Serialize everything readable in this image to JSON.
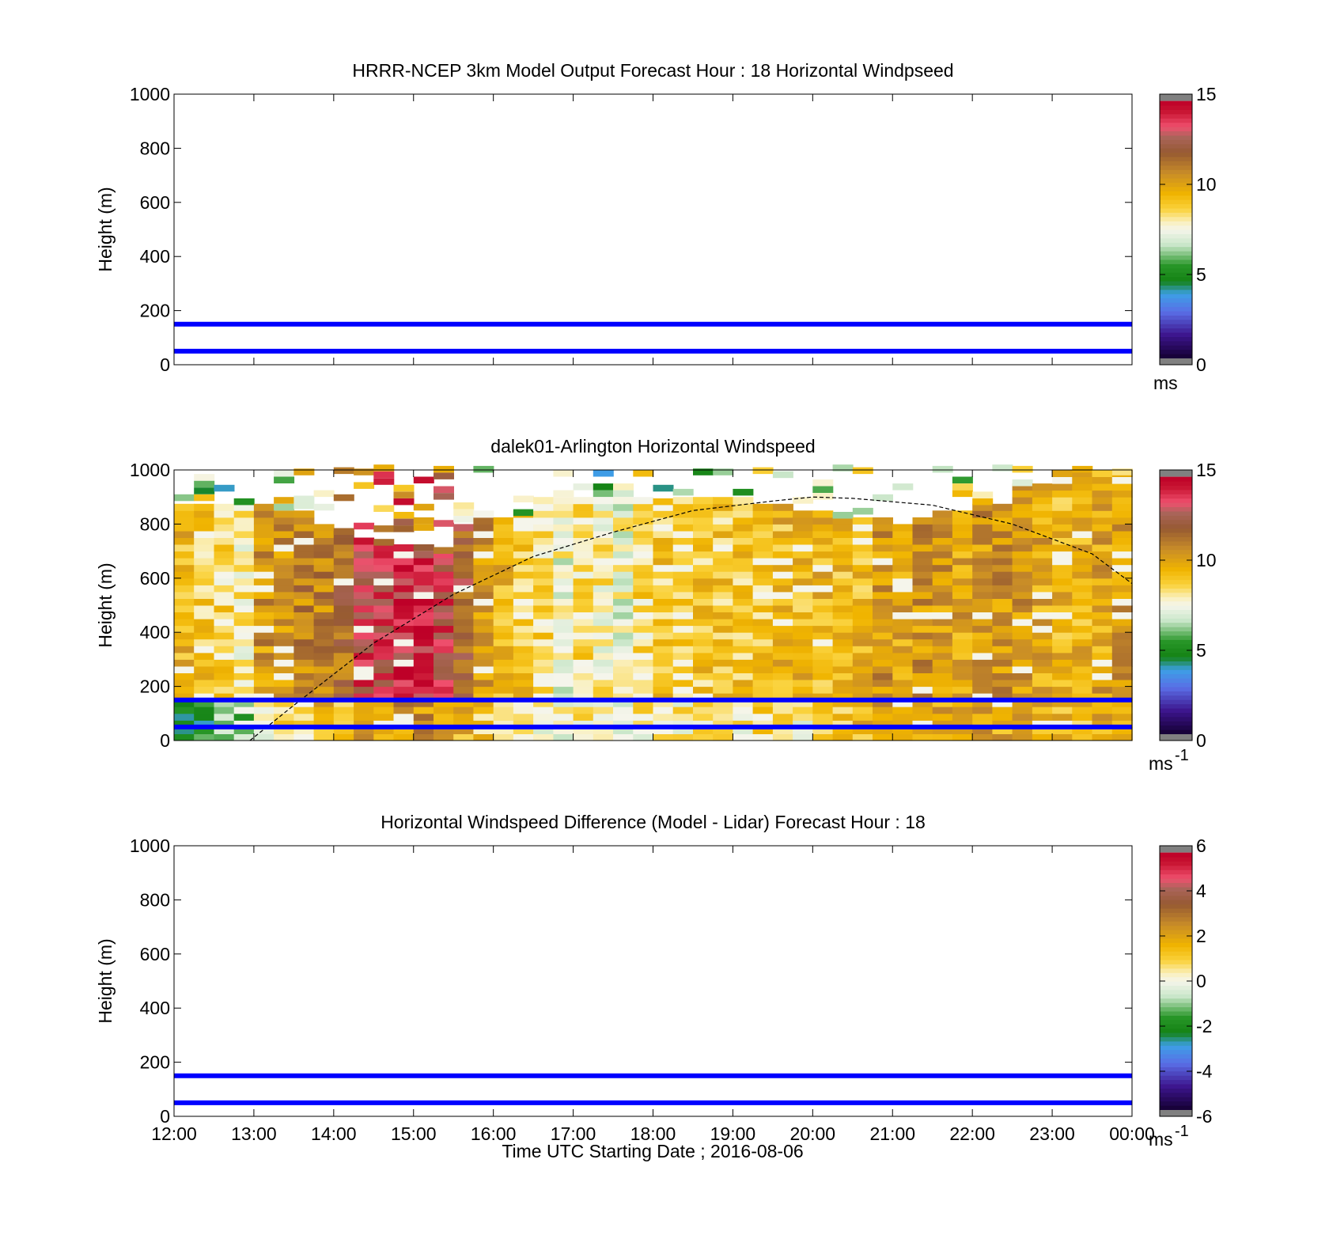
{
  "figure": {
    "background": "#ffffff",
    "x_ticks": [
      "12:00",
      "13:00",
      "14:00",
      "15:00",
      "16:00",
      "17:00",
      "18:00",
      "19:00",
      "20:00",
      "21:00",
      "22:00",
      "23:00",
      "00:00"
    ],
    "x_label": "Time UTC  Starting Date ; 2016-08-06"
  },
  "chart_data": [
    {
      "type": "heatmap",
      "title": "HRRR-NCEP 3km Model Output   Forecast Hour : 18 Horizontal Windpseed",
      "ylabel": "Height (m)",
      "ylim": [
        0,
        1000
      ],
      "y_ticks": [
        "0",
        "200",
        "400",
        "600",
        "800",
        "1000"
      ],
      "xlim_hours": [
        12,
        24
      ],
      "reference_lines": [
        {
          "height_m": 150,
          "color": "#0000ff"
        },
        {
          "height_m": 50,
          "color": "#0000ff"
        }
      ],
      "colorbar": {
        "range": [
          0,
          15
        ],
        "ticks": [
          "0",
          "5",
          "10",
          "15"
        ],
        "unit": "ms",
        "unit_superscript": ""
      },
      "data": "none"
    },
    {
      "type": "heatmap",
      "title": "dalek01-Arlington  Horizontal Windspeed",
      "ylabel": "Height (m)",
      "ylim": [
        0,
        1000
      ],
      "y_ticks": [
        "0",
        "200",
        "400",
        "600",
        "800",
        "1000"
      ],
      "xlim_hours": [
        12,
        24
      ],
      "reference_lines": [
        {
          "height_m": 150,
          "color": "#0000ff"
        },
        {
          "height_m": 50,
          "color": "#0000ff"
        }
      ],
      "boundary_layer_curve": {
        "style": "dashed",
        "color": "#000000",
        "points_hour_height": [
          [
            12.95,
            0
          ],
          [
            13.5,
            130
          ],
          [
            14.5,
            360
          ],
          [
            15.5,
            540
          ],
          [
            16.5,
            680
          ],
          [
            17.5,
            770
          ],
          [
            18.5,
            850
          ],
          [
            19.5,
            885
          ],
          [
            20.0,
            900
          ],
          [
            20.5,
            895
          ],
          [
            21.5,
            870
          ],
          [
            22.5,
            800
          ],
          [
            23.5,
            690
          ],
          [
            24.0,
            580
          ]
        ]
      },
      "colorbar": {
        "range": [
          0,
          15
        ],
        "ticks": [
          "0",
          "5",
          "10",
          "15"
        ],
        "unit": "ms",
        "unit_superscript": "-1"
      },
      "columns": [
        {
          "hour": 12.0,
          "top": 860,
          "speed": 9.5,
          "low_speed": 5.0
        },
        {
          "hour": 12.25,
          "top": 860,
          "speed": 9.0,
          "low_speed": 5.0
        },
        {
          "hour": 12.5,
          "top": 870,
          "speed": 8.5,
          "low_speed": 6.0
        },
        {
          "hour": 12.75,
          "top": 870,
          "speed": 8.0,
          "low_speed": 6.0
        },
        {
          "hour": 13.0,
          "top": 870,
          "speed": 10.5,
          "low_speed": 8.0
        },
        {
          "hour": 13.25,
          "top": 850,
          "speed": 10.5,
          "low_speed": 8.5
        },
        {
          "hour": 13.5,
          "top": 830,
          "speed": 11.0,
          "low_speed": 9.0
        },
        {
          "hour": 13.75,
          "top": 800,
          "speed": 11.0,
          "low_speed": 9.5
        },
        {
          "hour": 14.0,
          "top": 760,
          "speed": 11.5,
          "low_speed": 9.5
        },
        {
          "hour": 14.25,
          "top": 730,
          "speed": 13.5,
          "low_speed": 10.0
        },
        {
          "hour": 14.5,
          "top": 720,
          "speed": 13.5,
          "low_speed": 10.0
        },
        {
          "hour": 14.75,
          "top": 720,
          "speed": 14.0,
          "low_speed": 10.5
        },
        {
          "hour": 15.0,
          "top": 700,
          "speed": 14.0,
          "low_speed": 10.5
        },
        {
          "hour": 15.25,
          "top": 690,
          "speed": 13.5,
          "low_speed": 10.0
        },
        {
          "hour": 15.5,
          "top": 780,
          "speed": 12.0,
          "low_speed": 9.5
        },
        {
          "hour": 15.75,
          "top": 840,
          "speed": 10.5,
          "low_speed": 9.0
        },
        {
          "hour": 16.0,
          "top": 820,
          "speed": 9.5,
          "low_speed": 8.5
        },
        {
          "hour": 16.25,
          "top": 830,
          "speed": 9.0,
          "low_speed": 8.5
        },
        {
          "hour": 16.5,
          "top": 880,
          "speed": 8.5,
          "low_speed": 8.0
        },
        {
          "hour": 16.75,
          "top": 900,
          "speed": 7.5,
          "low_speed": 7.5
        },
        {
          "hour": 17.0,
          "top": 900,
          "speed": 8.5,
          "low_speed": 8.0
        },
        {
          "hour": 17.25,
          "top": 900,
          "speed": 8.0,
          "low_speed": 7.5
        },
        {
          "hour": 17.5,
          "top": 900,
          "speed": 7.5,
          "low_speed": 7.5
        },
        {
          "hour": 17.75,
          "top": 900,
          "speed": 8.5,
          "low_speed": 8.0
        },
        {
          "hour": 18.0,
          "top": 870,
          "speed": 9.0,
          "low_speed": 8.0
        },
        {
          "hour": 18.25,
          "top": 880,
          "speed": 8.5,
          "low_speed": 8.0
        },
        {
          "hour": 18.5,
          "top": 880,
          "speed": 9.0,
          "low_speed": 8.0
        },
        {
          "hour": 18.75,
          "top": 880,
          "speed": 9.0,
          "low_speed": 8.0
        },
        {
          "hour": 19.0,
          "top": 880,
          "speed": 9.0,
          "low_speed": 8.0
        },
        {
          "hour": 19.25,
          "top": 860,
          "speed": 9.0,
          "low_speed": 8.5
        },
        {
          "hour": 19.5,
          "top": 870,
          "speed": 9.5,
          "low_speed": 9.0
        },
        {
          "hour": 19.75,
          "top": 850,
          "speed": 9.5,
          "low_speed": 8.0
        },
        {
          "hour": 20.0,
          "top": 840,
          "speed": 9.5,
          "low_speed": 8.5
        },
        {
          "hour": 20.25,
          "top": 820,
          "speed": 9.5,
          "low_speed": 9.0
        },
        {
          "hour": 20.5,
          "top": 810,
          "speed": 9.5,
          "low_speed": 9.5
        },
        {
          "hour": 20.75,
          "top": 810,
          "speed": 10.5,
          "low_speed": 10.0
        },
        {
          "hour": 21.0,
          "top": 800,
          "speed": 10.0,
          "low_speed": 10.0
        },
        {
          "hour": 21.25,
          "top": 820,
          "speed": 10.5,
          "low_speed": 10.0
        },
        {
          "hour": 21.5,
          "top": 840,
          "speed": 10.5,
          "low_speed": 10.0
        },
        {
          "hour": 21.75,
          "top": 850,
          "speed": 10.0,
          "low_speed": 9.5
        },
        {
          "hour": 22.0,
          "top": 870,
          "speed": 10.5,
          "low_speed": 10.0
        },
        {
          "hour": 22.25,
          "top": 870,
          "speed": 10.5,
          "low_speed": 10.0
        },
        {
          "hour": 22.5,
          "top": 940,
          "speed": 10.5,
          "low_speed": 10.5
        },
        {
          "hour": 22.75,
          "top": 940,
          "speed": 10.0,
          "low_speed": 10.0
        },
        {
          "hour": 23.0,
          "top": 990,
          "speed": 9.5,
          "low_speed": 9.5
        },
        {
          "hour": 23.25,
          "top": 990,
          "speed": 9.5,
          "low_speed": 9.5
        },
        {
          "hour": 23.5,
          "top": 980,
          "speed": 10.0,
          "low_speed": 10.0
        },
        {
          "hour": 23.75,
          "top": 980,
          "speed": 10.5,
          "low_speed": 10.0
        }
      ]
    },
    {
      "type": "heatmap",
      "title": "Horizontal Windspeed Difference (Model - Lidar) Forecast Hour : 18",
      "ylabel": "Height (m)",
      "ylim": [
        0,
        1000
      ],
      "y_ticks": [
        "0",
        "200",
        "400",
        "600",
        "800",
        "1000"
      ],
      "xlim_hours": [
        12,
        24
      ],
      "reference_lines": [
        {
          "height_m": 150,
          "color": "#0000ff"
        },
        {
          "height_m": 50,
          "color": "#0000ff"
        }
      ],
      "colorbar": {
        "range": [
          -6,
          6
        ],
        "ticks": [
          "-6",
          "-4",
          "-2",
          "0",
          "2",
          "4",
          "6"
        ],
        "unit": "ms",
        "unit_superscript": "-1"
      },
      "data": "none"
    }
  ]
}
